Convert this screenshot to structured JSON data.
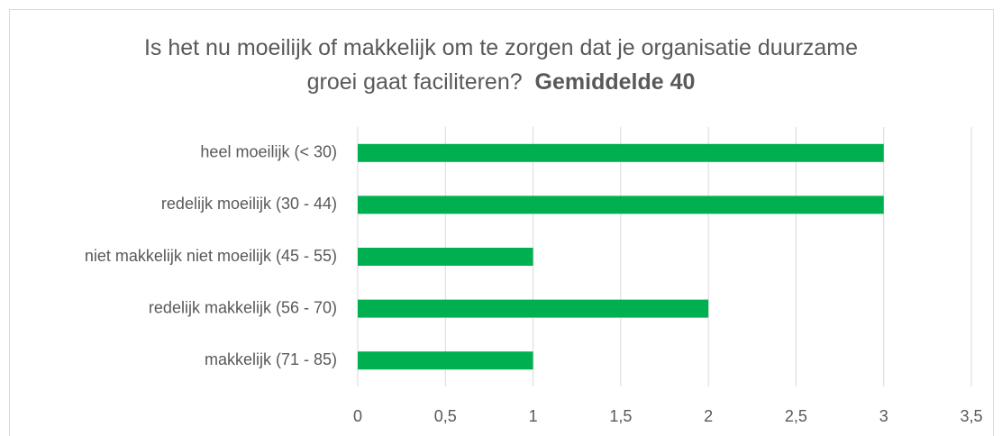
{
  "chart_data": {
    "type": "bar",
    "orientation": "horizontal",
    "title": "Is het nu moeilijk of makkelijk om te zorgen dat je organisatie duurzame groei gaat faciliteren?",
    "title_emphasis": "Gemiddelde 40",
    "categories": [
      "heel moeilijk (< 30)",
      "redelijk moeilijk (30 - 44)",
      "niet makkelijk niet moeilijk (45 - 55)",
      "redelijk makkelijk (56 - 70)",
      "makkelijk (71 - 85)"
    ],
    "values": [
      3,
      3,
      1,
      2,
      1
    ],
    "color": "#00b050",
    "xlim": [
      0,
      3.5
    ],
    "xticks": [
      0,
      {
        "value": 0.5,
        "label": "0,5"
      },
      1,
      {
        "value": 1.5,
        "label": "1,5"
      },
      2,
      {
        "value": 2.5,
        "label": "2,5"
      },
      3,
      {
        "value": 3.5,
        "label": "3,5"
      }
    ],
    "grid": true
  }
}
